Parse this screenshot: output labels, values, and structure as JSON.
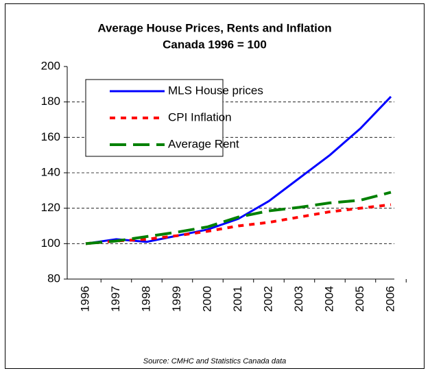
{
  "chart_data": {
    "type": "line",
    "title": "Average House Prices, Rents and Inflation",
    "subtitle": "Canada 1996 = 100",
    "source": "Source: CMHC and Statistics Canada data",
    "categories": [
      "1996",
      "1997",
      "1998",
      "1999",
      "2000",
      "2001",
      "2002",
      "2003",
      "2004",
      "2005",
      "2006"
    ],
    "series": [
      {
        "name": "MLS House prices",
        "color": "#0000ff",
        "style": "solid",
        "values": [
          100,
          102.5,
          101,
          104.5,
          108,
          114,
          124,
          137,
          150,
          165,
          183
        ]
      },
      {
        "name": "CPI Inflation",
        "color": "#ff0000",
        "style": "dotted",
        "values": [
          100,
          101.5,
          102.5,
          104.5,
          107,
          110,
          112,
          115,
          118,
          120,
          122
        ]
      },
      {
        "name": "Average Rent",
        "color": "#008000",
        "style": "dashed",
        "values": [
          100,
          101.5,
          104,
          106.5,
          109.5,
          115,
          118.5,
          120.5,
          123,
          124.5,
          129
        ]
      }
    ],
    "ylim": [
      80,
      200
    ],
    "yticks": [
      80,
      100,
      120,
      140,
      160,
      180,
      200
    ],
    "grid": true,
    "legend": "upper left"
  }
}
